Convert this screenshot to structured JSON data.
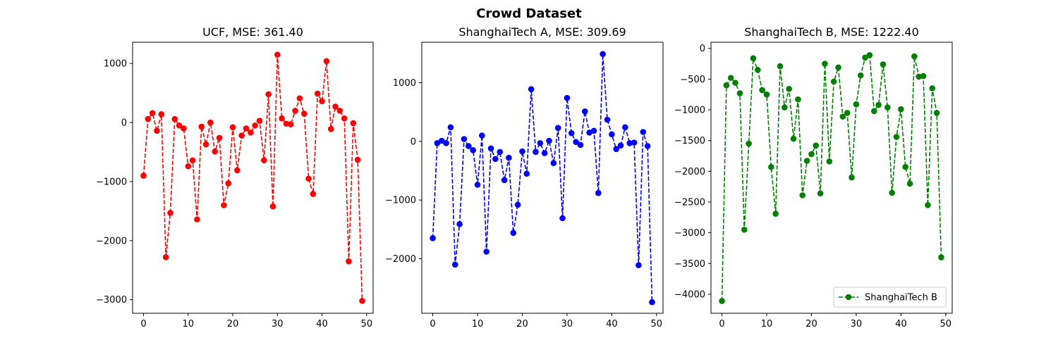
{
  "figure": {
    "title": "Crowd Dataset"
  },
  "chart_data": [
    {
      "type": "line",
      "title": "UCF, MSE: 361.40",
      "xlabel": "",
      "ylabel": "",
      "xlim": [
        -2.45,
        51.45
      ],
      "ylim": [
        -3230,
        1360
      ],
      "xticks": [
        0,
        10,
        20,
        30,
        40,
        50
      ],
      "yticks": [
        -3000,
        -2000,
        -1000,
        0,
        1000
      ],
      "ytick_labels": [
        "−3000",
        "−2000",
        "−1000",
        "0",
        "1000"
      ],
      "xtick_labels": [
        "0",
        "10",
        "20",
        "30",
        "40",
        "50"
      ],
      "grid": false,
      "legend": null,
      "series": [
        {
          "name": "UCF",
          "color": "#ff0000",
          "linestyle": "dashed",
          "marker": "circle",
          "x": [
            0,
            1,
            2,
            3,
            4,
            5,
            6,
            7,
            8,
            9,
            10,
            11,
            12,
            13,
            14,
            15,
            16,
            17,
            18,
            19,
            20,
            21,
            22,
            23,
            24,
            25,
            26,
            27,
            28,
            29,
            30,
            31,
            32,
            33,
            34,
            35,
            36,
            37,
            38,
            39,
            40,
            41,
            42,
            43,
            44,
            45,
            46,
            47,
            48,
            49
          ],
          "values": [
            -900,
            60,
            160,
            -140,
            140,
            -2280,
            -1530,
            60,
            -50,
            -100,
            -740,
            -640,
            -1640,
            -70,
            -370,
            0,
            -490,
            -260,
            -1400,
            -1030,
            -80,
            -810,
            -220,
            -100,
            -170,
            -50,
            30,
            -640,
            480,
            -1420,
            1150,
            70,
            -20,
            -30,
            200,
            410,
            150,
            -950,
            -1210,
            490,
            360,
            1040,
            -110,
            270,
            200,
            70,
            -2350,
            -10,
            -630,
            -3020
          ]
        }
      ]
    },
    {
      "type": "line",
      "title": "ShanghaiTech A, MSE: 309.69",
      "xlabel": "",
      "ylabel": "",
      "xlim": [
        -2.45,
        51.45
      ],
      "ylim": [
        -2930,
        1690
      ],
      "xticks": [
        0,
        10,
        20,
        30,
        40,
        50
      ],
      "yticks": [
        -2000,
        -1000,
        0,
        1000
      ],
      "ytick_labels": [
        "−2000",
        "−1000",
        "0",
        "1000"
      ],
      "xtick_labels": [
        "0",
        "10",
        "20",
        "30",
        "40",
        "50"
      ],
      "grid": false,
      "legend": null,
      "series": [
        {
          "name": "ShanghaiTech A",
          "color": "#0000ff",
          "linestyle": "dashed",
          "marker": "circle",
          "x": [
            0,
            1,
            2,
            3,
            4,
            5,
            6,
            7,
            8,
            9,
            10,
            11,
            12,
            13,
            14,
            15,
            16,
            17,
            18,
            19,
            20,
            21,
            22,
            23,
            24,
            25,
            26,
            27,
            28,
            29,
            30,
            31,
            32,
            33,
            34,
            35,
            36,
            37,
            38,
            39,
            40,
            41,
            42,
            43,
            44,
            45,
            46,
            47,
            48,
            49
          ],
          "values": [
            -1650,
            -30,
            10,
            -30,
            240,
            -2100,
            -1410,
            40,
            -80,
            -150,
            -740,
            100,
            -1880,
            -120,
            -300,
            -180,
            -660,
            -280,
            -1560,
            -1080,
            -170,
            -550,
            890,
            -180,
            -30,
            -200,
            10,
            -370,
            230,
            -1310,
            740,
            140,
            -10,
            -60,
            510,
            150,
            180,
            -880,
            1490,
            370,
            120,
            -130,
            -70,
            240,
            -30,
            -20,
            -2110,
            160,
            -80,
            -2740
          ]
        }
      ]
    },
    {
      "type": "line",
      "title": "ShanghaiTech B, MSE: 1222.40",
      "xlabel": "",
      "ylabel": "",
      "xlim": [
        -2.45,
        51.45
      ],
      "ylim": [
        -4310,
        100
      ],
      "xticks": [
        0,
        10,
        20,
        30,
        40,
        50
      ],
      "yticks": [
        -4000,
        -3500,
        -3000,
        -2500,
        -2000,
        -1500,
        -1000,
        -500,
        0
      ],
      "ytick_labels": [
        "−4000",
        "−3500",
        "−3000",
        "−2500",
        "−2000",
        "−1500",
        "−1000",
        "−500",
        "0"
      ],
      "xtick_labels": [
        "0",
        "10",
        "20",
        "30",
        "40",
        "50"
      ],
      "grid": false,
      "legend": {
        "position": "lower-right",
        "entries": [
          "ShanghaiTech B"
        ]
      },
      "series": [
        {
          "name": "ShanghaiTech B",
          "color": "#008000",
          "linestyle": "dashed",
          "marker": "circle",
          "x": [
            0,
            1,
            2,
            3,
            4,
            5,
            6,
            7,
            8,
            9,
            10,
            11,
            12,
            13,
            14,
            15,
            16,
            17,
            18,
            19,
            20,
            21,
            22,
            23,
            24,
            25,
            26,
            27,
            28,
            29,
            30,
            31,
            32,
            33,
            34,
            35,
            36,
            37,
            38,
            39,
            40,
            41,
            42,
            43,
            44,
            45,
            46,
            47,
            48,
            49
          ],
          "values": [
            -4110,
            -600,
            -480,
            -560,
            -730,
            -2950,
            -1550,
            -160,
            -350,
            -680,
            -750,
            -1930,
            -2690,
            -290,
            -960,
            -660,
            -1470,
            -830,
            -2390,
            -1830,
            -1720,
            -1580,
            -2360,
            -250,
            -1840,
            -540,
            -310,
            -1110,
            -1050,
            -2100,
            -910,
            -440,
            -150,
            -110,
            -1020,
            -920,
            -260,
            -960,
            -2350,
            -1440,
            -990,
            -1930,
            -2200,
            -130,
            -460,
            -450,
            -2550,
            -650,
            -1050,
            -3400
          ]
        }
      ]
    }
  ]
}
